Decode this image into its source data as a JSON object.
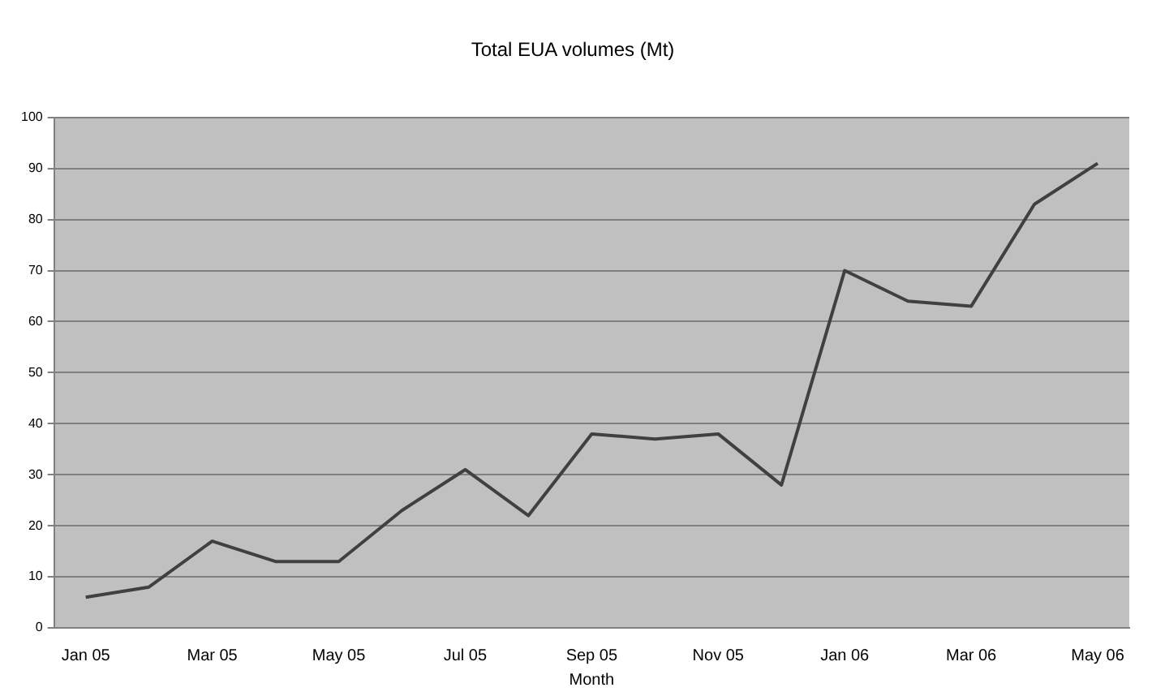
{
  "chart_data": {
    "type": "line",
    "title": "Total EUA volumes (Mt)",
    "xlabel": "Month",
    "categories": [
      "Jan 05",
      null,
      "Mar 05",
      null,
      "May 05",
      null,
      "Jul 05",
      null,
      "Sep 05",
      null,
      "Nov 05",
      null,
      "Jan 06",
      null,
      "Mar 06",
      null,
      "May 06"
    ],
    "series": [
      {
        "color": "#404040",
        "values": [
          6,
          8,
          17,
          13,
          13,
          23,
          31,
          22,
          38,
          37,
          38,
          28,
          70,
          64,
          63,
          83,
          91
        ]
      }
    ],
    "ylim": [
      0,
      100
    ],
    "yticks": [
      0,
      10,
      20,
      30,
      40,
      50,
      60,
      70,
      80,
      90,
      100
    ],
    "grid": "y",
    "legend": false,
    "marker": "none",
    "line_style": "solid"
  }
}
